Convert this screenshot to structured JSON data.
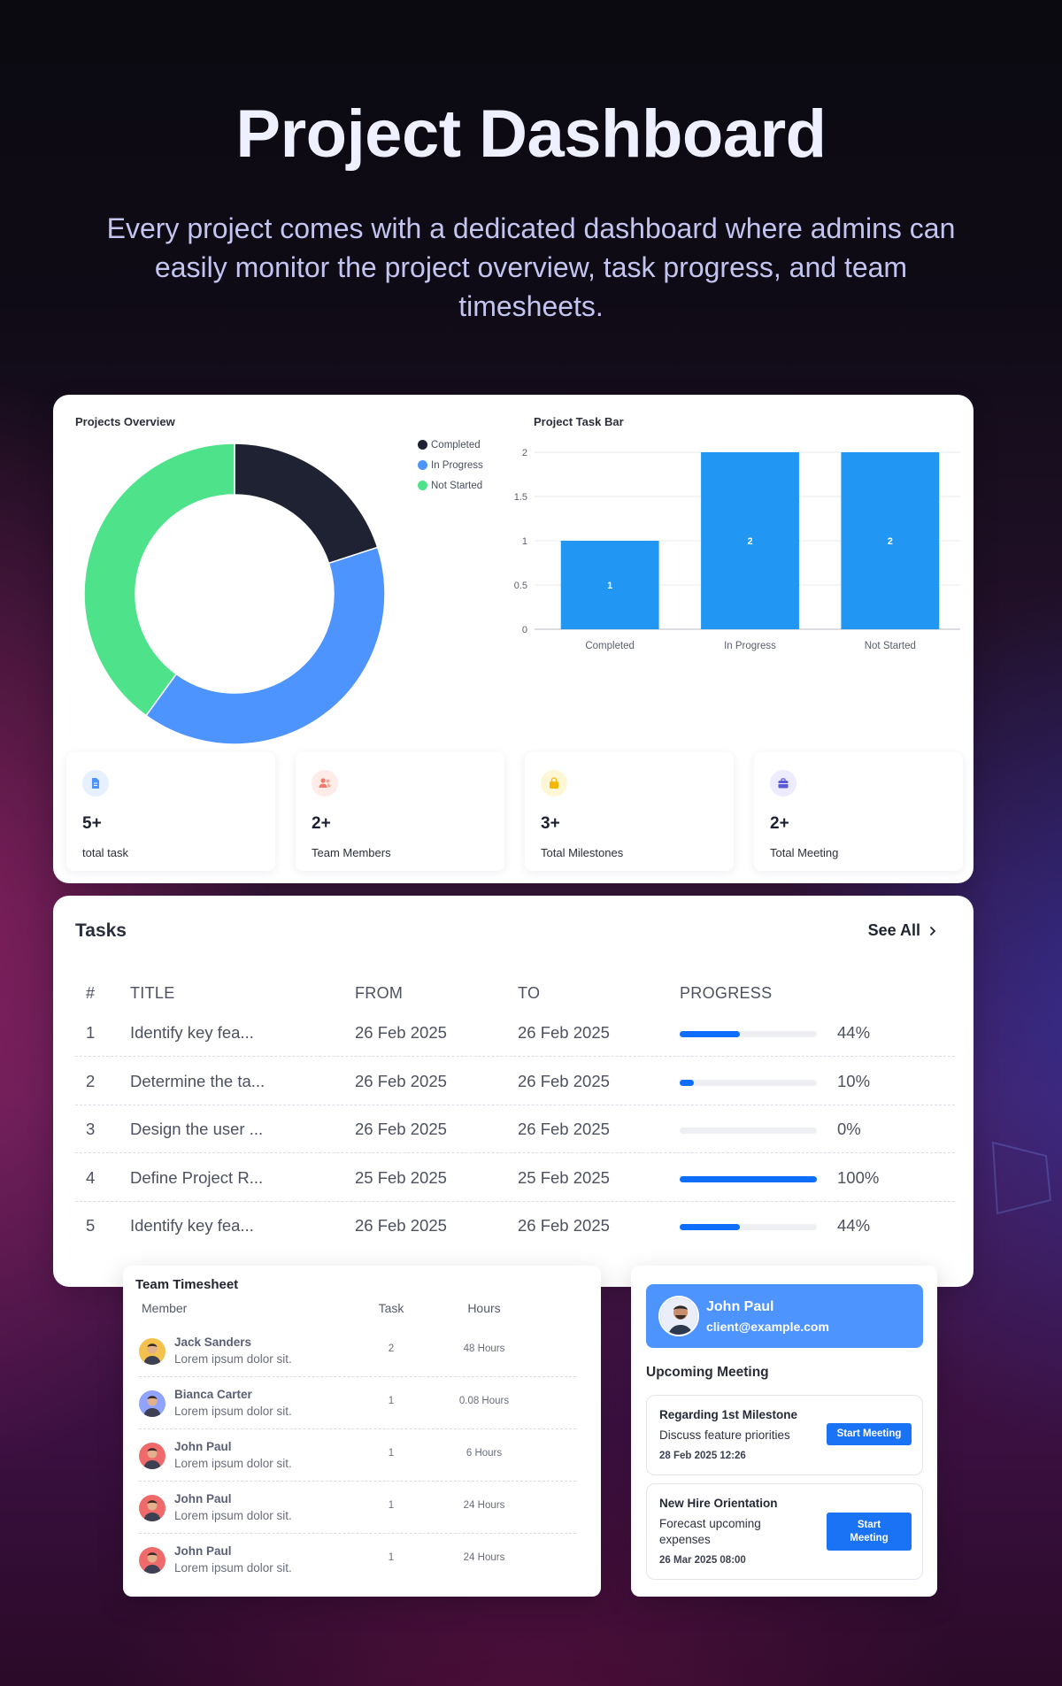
{
  "hero": {
    "title": "Project Dashboard",
    "subtitle": "Every project comes with a dedicated dashboard where admins can easily monitor the project overview, task progress, and team timesheets."
  },
  "overview": {
    "donut_title": "Projects Overview",
    "bar_title": "Project Task Bar",
    "legend": [
      {
        "label": "Completed",
        "color": "#1f2233"
      },
      {
        "label": "In Progress",
        "color": "#4d94ff"
      },
      {
        "label": "Not Started",
        "color": "#4ee38a"
      }
    ]
  },
  "chart_data": [
    {
      "type": "pie",
      "title": "Projects Overview",
      "categories": [
        "Completed",
        "In Progress",
        "Not Started"
      ],
      "values": [
        1,
        2,
        2
      ],
      "colors": [
        "#1f2233",
        "#4d94ff",
        "#4ee38a"
      ],
      "legend_position": "top-right"
    },
    {
      "type": "bar",
      "title": "Project Task Bar",
      "categories": [
        "Completed",
        "In Progress",
        "Not Started"
      ],
      "values": [
        1,
        2,
        2
      ],
      "ylim": [
        0,
        2
      ],
      "yticks": [
        "0",
        "0.5",
        "1",
        "1.5",
        "2"
      ],
      "color": "#2196f3",
      "grid": true
    }
  ],
  "stats": [
    {
      "value": "5+",
      "label": "total task",
      "icon": "document-icon",
      "icon_color": "#4d94ff",
      "icon_bg": "#e6f0ff"
    },
    {
      "value": "2+",
      "label": "Team Members",
      "icon": "users-icon",
      "icon_color": "#f27a6a",
      "icon_bg": "#ffece9"
    },
    {
      "value": "3+",
      "label": "Total Milestones",
      "icon": "bag-icon",
      "icon_color": "#f5b800",
      "icon_bg": "#fff6d6"
    },
    {
      "value": "2+",
      "label": "Total Meeting",
      "icon": "briefcase-icon",
      "icon_color": "#5b5bd6",
      "icon_bg": "#ecebff"
    }
  ],
  "tasks": {
    "title": "Tasks",
    "see_all": "See All",
    "headers": {
      "num": "#",
      "title": "TITLE",
      "from": "FROM",
      "to": "TO",
      "progress": "PROGRESS"
    },
    "rows": [
      {
        "num": "1",
        "title": "Identify key fea...",
        "from": "26 Feb 2025",
        "to": "26 Feb 2025",
        "progress": 44,
        "progress_label": "44%"
      },
      {
        "num": "2",
        "title": "Determine the ta...",
        "from": "26 Feb 2025",
        "to": "26 Feb 2025",
        "progress": 10,
        "progress_label": "10%"
      },
      {
        "num": "3",
        "title": "Design the user ...",
        "from": "26 Feb 2025",
        "to": "26 Feb 2025",
        "progress": 0,
        "progress_label": "0%"
      },
      {
        "num": "4",
        "title": "Define Project R...",
        "from": "25 Feb 2025",
        "to": "25 Feb 2025",
        "progress": 100,
        "progress_label": "100%"
      },
      {
        "num": "5",
        "title": "Identify key fea...",
        "from": "26 Feb 2025",
        "to": "26 Feb 2025",
        "progress": 44,
        "progress_label": "44%"
      }
    ]
  },
  "timesheet": {
    "title": "Team Timesheet",
    "headers": {
      "member": "Member",
      "task": "Task",
      "hours": "Hours"
    },
    "rows": [
      {
        "name": "Jack Sanders",
        "desc": "Lorem ipsum dolor sit.",
        "task": "2",
        "hours": "48 Hours",
        "avatar_bg": "#f2c14e"
      },
      {
        "name": "Bianca Carter",
        "desc": "Lorem ipsum dolor sit.",
        "task": "1",
        "hours": "0.08 Hours",
        "avatar_bg": "#8fa3ff"
      },
      {
        "name": "John Paul",
        "desc": "Lorem ipsum dolor sit.",
        "task": "1",
        "hours": "6 Hours",
        "avatar_bg": "#ef6a6a"
      },
      {
        "name": "John Paul",
        "desc": "Lorem ipsum dolor sit.",
        "task": "1",
        "hours": "24 Hours",
        "avatar_bg": "#ef6a6a"
      },
      {
        "name": "John Paul",
        "desc": "Lorem ipsum dolor sit.",
        "task": "1",
        "hours": "24 Hours",
        "avatar_bg": "#ef6a6a"
      }
    ]
  },
  "meetings": {
    "profile": {
      "name": "John Paul",
      "email": "client@example.com"
    },
    "title": "Upcoming Meeting",
    "items": [
      {
        "title": "Regarding 1st Milestone",
        "desc": "Discuss feature priorities",
        "date": "28 Feb 2025 12:26",
        "button": "Start Meeting"
      },
      {
        "title": "New Hire Orientation",
        "desc": "Forecast upcoming expenses",
        "date": "26 Mar 2025 08:00",
        "button": "Start Meeting"
      }
    ]
  }
}
